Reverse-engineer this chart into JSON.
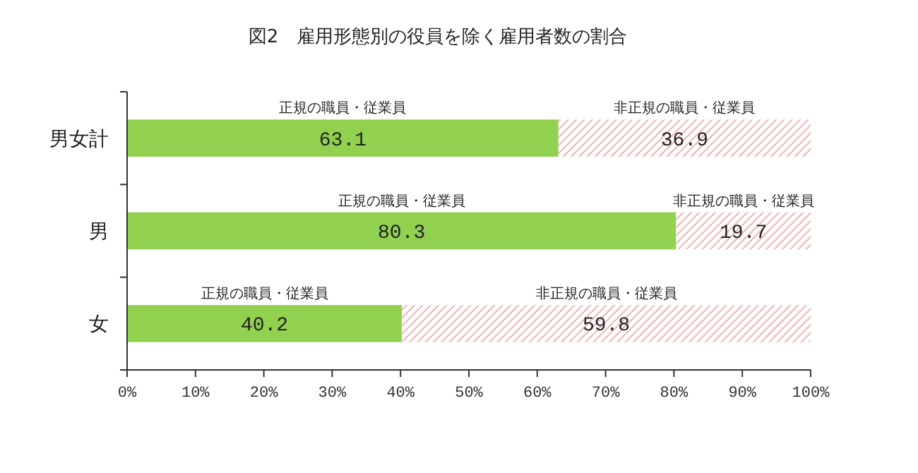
{
  "chart_data": {
    "type": "bar",
    "orientation": "horizontal",
    "stacked": true,
    "title": "図2　雇用形態別の役員を除く雇用者数の割合",
    "categories": [
      "男女計",
      "男",
      "女"
    ],
    "series": [
      {
        "name": "正規の職員・従業員",
        "color": "#92d050",
        "values": [
          63.1,
          80.3,
          40.2
        ]
      },
      {
        "name": "非正規の職員・従業員",
        "color": "#e8a0a0",
        "values": [
          36.9,
          19.7,
          59.8
        ]
      }
    ],
    "xlim": [
      0,
      100
    ],
    "xticks": [
      {
        "value": 0,
        "label": "0%"
      },
      {
        "value": 10,
        "label": "10%"
      },
      {
        "value": 20,
        "label": "20%"
      },
      {
        "value": 30,
        "label": "30%"
      },
      {
        "value": 40,
        "label": "40%"
      },
      {
        "value": 50,
        "label": "50%"
      },
      {
        "value": 60,
        "label": "60%"
      },
      {
        "value": 70,
        "label": "70%"
      },
      {
        "value": 80,
        "label": "80%"
      },
      {
        "value": 90,
        "label": "90%"
      },
      {
        "value": 100,
        "label": "100%"
      }
    ],
    "data_labels": true,
    "grid": false
  }
}
